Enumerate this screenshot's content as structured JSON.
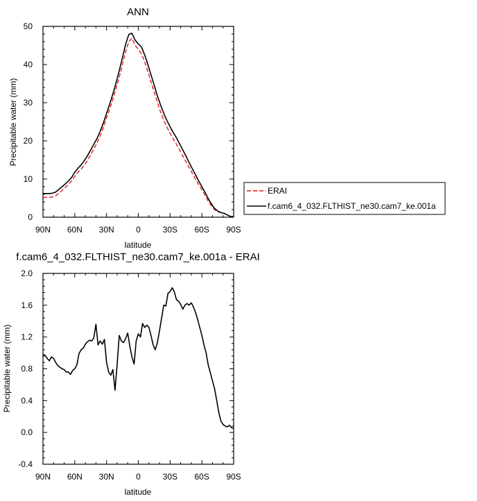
{
  "chart_data": [
    {
      "type": "line",
      "title": "ANN",
      "xlabel": "latitude",
      "ylabel": "Precipitable water (mm)",
      "xlim": [
        90,
        -90
      ],
      "ylim": [
        0,
        50
      ],
      "x_tick_values": [
        90,
        60,
        30,
        0,
        -30,
        -60,
        -90
      ],
      "x_tick_labels": [
        "90N",
        "60N",
        "30N",
        "0",
        "30S",
        "60S",
        "90S"
      ],
      "y_tick_values": [
        0,
        10,
        20,
        30,
        40,
        50
      ],
      "y_tick_labels": [
        "0",
        "10",
        "20",
        "30",
        "40",
        "50"
      ],
      "legend": {
        "position": "right"
      },
      "series": [
        {
          "name": "ERAI",
          "color": "#e8141c",
          "style": "dashed",
          "x": [
            90,
            87,
            84,
            81,
            78,
            75,
            72,
            69,
            66,
            63,
            60,
            57,
            54,
            51,
            48,
            45,
            42,
            39,
            36,
            33,
            30,
            27,
            24,
            21,
            18,
            15,
            12,
            9,
            6,
            3,
            0,
            -3,
            -6,
            -9,
            -12,
            -15,
            -18,
            -21,
            -24,
            -27,
            -30,
            -33,
            -36,
            -39,
            -42,
            -45,
            -48,
            -51,
            -54,
            -57,
            -60,
            -63,
            -66,
            -69,
            -72,
            -75,
            -78,
            -81,
            -84,
            -87,
            -90
          ],
          "y": [
            5.2,
            5.2,
            5.2,
            5.3,
            5.6,
            6.3,
            7.0,
            7.8,
            8.6,
            9.5,
            10.7,
            11.8,
            12.6,
            13.6,
            14.9,
            16.4,
            17.9,
            19.5,
            21.3,
            23.5,
            26.0,
            28.4,
            30.9,
            33.7,
            36.7,
            40.0,
            43.4,
            46.0,
            46.9,
            45.0,
            44.0,
            42.8,
            40.7,
            38.2,
            35.5,
            32.8,
            30.1,
            27.6,
            25.4,
            23.6,
            22.0,
            20.5,
            19.1,
            17.6,
            16.0,
            14.5,
            13.0,
            11.5,
            10.0,
            8.5,
            7.2,
            5.7,
            4.2,
            3.0,
            2.0,
            1.4,
            1.2,
            1.0,
            0.6,
            0.2,
            0.1
          ]
        },
        {
          "name": "f.cam6_4_032.FLTHIST_ne30.cam7_ke.001a",
          "color": "#000000",
          "style": "solid",
          "x": [
            90,
            87,
            84,
            81,
            78,
            75,
            72,
            69,
            66,
            63,
            60,
            57,
            54,
            51,
            48,
            45,
            42,
            39,
            36,
            33,
            30,
            27,
            24,
            21,
            18,
            15,
            12,
            9,
            6,
            3,
            0,
            -3,
            -6,
            -9,
            -12,
            -15,
            -18,
            -21,
            -24,
            -27,
            -30,
            -33,
            -36,
            -39,
            -42,
            -45,
            -48,
            -51,
            -54,
            -57,
            -60,
            -63,
            -66,
            -69,
            -72,
            -75,
            -78,
            -81,
            -84,
            -87,
            -90
          ],
          "y": [
            6.2,
            6.2,
            6.2,
            6.3,
            6.6,
            7.3,
            8.0,
            8.7,
            9.5,
            10.4,
            11.8,
            12.8,
            13.7,
            14.8,
            16.1,
            17.6,
            19.1,
            20.6,
            22.5,
            24.7,
            27.2,
            29.7,
            32.3,
            35.2,
            38.4,
            41.8,
            45.3,
            47.9,
            48.2,
            46.4,
            45.4,
            44.6,
            42.5,
            40.0,
            37.3,
            34.6,
            31.8,
            29.4,
            27.2,
            25.3,
            23.7,
            22.2,
            20.8,
            19.2,
            17.6,
            16.0,
            14.3,
            12.7,
            11.1,
            9.5,
            8.0,
            6.5,
            4.9,
            3.5,
            2.3,
            1.6,
            1.2,
            1.0,
            0.6,
            0.2,
            0.1
          ]
        }
      ]
    },
    {
      "type": "line",
      "title": "f.cam6_4_032.FLTHIST_ne30.cam7_ke.001a - ERAI",
      "xlabel": "latitude",
      "ylabel": "Precipitable water (mm)",
      "xlim": [
        90,
        -90
      ],
      "ylim": [
        -0.4,
        2.0
      ],
      "x_tick_values": [
        90,
        60,
        30,
        0,
        -30,
        -60,
        -90
      ],
      "x_tick_labels": [
        "90N",
        "60N",
        "30N",
        "0",
        "30S",
        "60S",
        "90S"
      ],
      "y_tick_values": [
        -0.4,
        0.0,
        0.4,
        0.8,
        1.2,
        1.6,
        2.0
      ],
      "y_tick_labels": [
        "-0.4",
        "0.0",
        "0.4",
        "0.8",
        "1.2",
        "1.6",
        "2.0"
      ],
      "series": [
        {
          "name": "",
          "color": "#000000",
          "style": "solid",
          "x": [
            90,
            88,
            86,
            84,
            82,
            80,
            78,
            76,
            74,
            72,
            70,
            68,
            66,
            64,
            62,
            60,
            58,
            56,
            54,
            52,
            50,
            48,
            46,
            44,
            42,
            40,
            38,
            36,
            34,
            32,
            30,
            28,
            26,
            24,
            22,
            20,
            18,
            16,
            14,
            12,
            10,
            8,
            6,
            4,
            2,
            0,
            -2,
            -4,
            -6,
            -8,
            -10,
            -12,
            -14,
            -16,
            -18,
            -20,
            -22,
            -24,
            -26,
            -28,
            -30,
            -32,
            -34,
            -36,
            -38,
            -40,
            -42,
            -44,
            -46,
            -48,
            -50,
            -52,
            -54,
            -56,
            -58,
            -60,
            -62,
            -64,
            -66,
            -68,
            -70,
            -72,
            -74,
            -76,
            -78,
            -80,
            -82,
            -84,
            -86,
            -88,
            -90
          ],
          "y": [
            0.98,
            0.97,
            0.93,
            0.9,
            0.95,
            0.93,
            0.88,
            0.84,
            0.82,
            0.8,
            0.79,
            0.76,
            0.76,
            0.73,
            0.78,
            0.8,
            0.85,
            0.99,
            1.04,
            1.06,
            1.11,
            1.14,
            1.16,
            1.15,
            1.19,
            1.36,
            1.1,
            1.15,
            1.11,
            1.17,
            0.88,
            0.76,
            0.72,
            0.79,
            0.53,
            0.85,
            1.22,
            1.15,
            1.13,
            1.18,
            1.25,
            1.08,
            0.95,
            0.86,
            1.15,
            1.24,
            1.2,
            1.37,
            1.32,
            1.35,
            1.32,
            1.22,
            1.1,
            1.04,
            1.13,
            1.28,
            1.44,
            1.6,
            1.59,
            1.75,
            1.77,
            1.82,
            1.77,
            1.67,
            1.65,
            1.61,
            1.55,
            1.6,
            1.62,
            1.6,
            1.63,
            1.58,
            1.51,
            1.42,
            1.32,
            1.22,
            1.1,
            1.0,
            0.85,
            0.75,
            0.65,
            0.55,
            0.4,
            0.25,
            0.14,
            0.1,
            0.08,
            0.07,
            0.09,
            0.06,
            0.05
          ]
        }
      ]
    }
  ]
}
